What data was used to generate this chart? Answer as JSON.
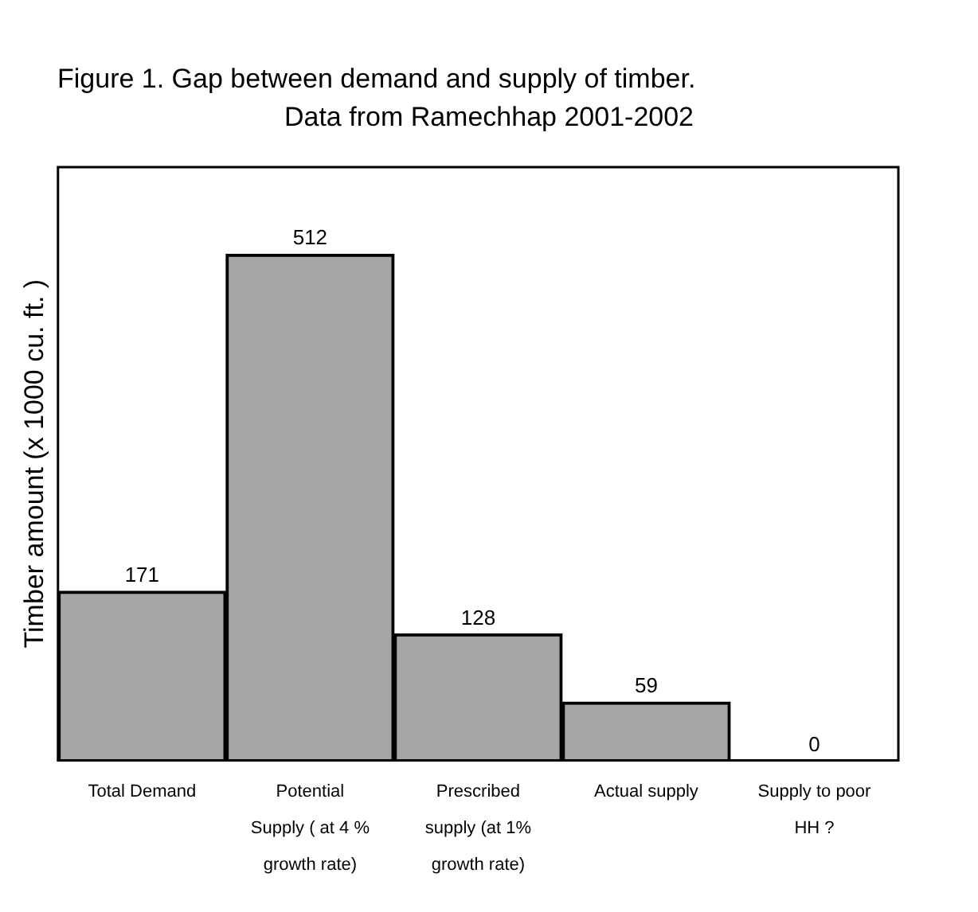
{
  "chart_data": {
    "type": "bar",
    "title": "Figure 1. Gap between demand and supply of timber.",
    "subtitle": "Data from Ramechhap 2001-2002",
    "ylabel": "Timber amount (x 1000 cu. ft. )",
    "categories": [
      "Total Demand",
      "Potential Supply ( at 4 % growth rate)",
      "Prescribed supply (at 1% growth rate)",
      "Actual supply",
      "Supply to poor HH ?"
    ],
    "values": [
      171,
      512,
      128,
      59,
      0
    ],
    "color": "#a6a6a6",
    "data_labels": true,
    "grid": false,
    "legend": false,
    "tick_labels": "x"
  }
}
